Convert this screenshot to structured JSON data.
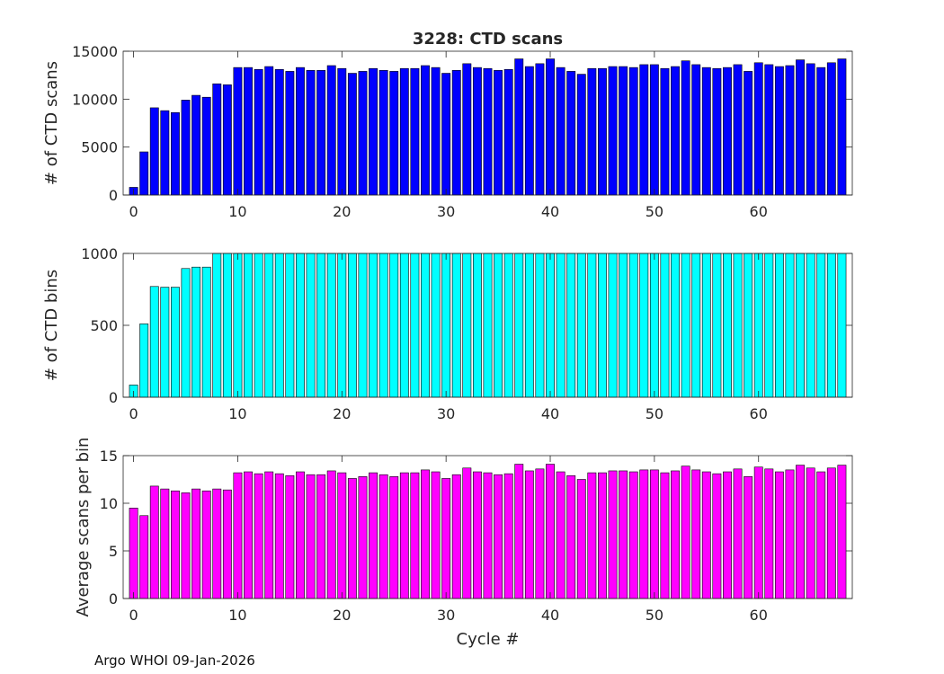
{
  "figure": {
    "footer": "Argo WHOI 09-Jan-2026"
  },
  "chart_data": [
    {
      "type": "bar",
      "title": "3228: CTD scans",
      "xlabel": "",
      "ylabel": "# of CTD scans",
      "color": "#0000ff",
      "xlim": [
        -1,
        69
      ],
      "ylim": [
        0,
        15000
      ],
      "yticks": [
        0,
        5000,
        10000,
        15000
      ],
      "xticks": [
        0,
        10,
        20,
        30,
        40,
        50,
        60
      ],
      "grid": false,
      "x": [
        0,
        1,
        2,
        3,
        4,
        5,
        6,
        7,
        8,
        9,
        10,
        11,
        12,
        13,
        14,
        15,
        16,
        17,
        18,
        19,
        20,
        21,
        22,
        23,
        24,
        25,
        26,
        27,
        28,
        29,
        30,
        31,
        32,
        33,
        34,
        35,
        36,
        37,
        38,
        39,
        40,
        41,
        42,
        43,
        44,
        45,
        46,
        47,
        48,
        49,
        50,
        51,
        52,
        53,
        54,
        55,
        56,
        57,
        58,
        59,
        60,
        61,
        62,
        63,
        64,
        65,
        66,
        67,
        68
      ],
      "values": [
        800,
        4500,
        9100,
        8800,
        8600,
        9900,
        10400,
        10200,
        11600,
        11500,
        13300,
        13300,
        13100,
        13400,
        13100,
        12900,
        13300,
        13000,
        13000,
        13500,
        13200,
        12700,
        12900,
        13200,
        13000,
        12900,
        13200,
        13200,
        13500,
        13300,
        12700,
        13000,
        13700,
        13300,
        13200,
        13000,
        13100,
        14200,
        13400,
        13700,
        14200,
        13300,
        12900,
        12600,
        13200,
        13200,
        13400,
        13400,
        13300,
        13600,
        13600,
        13200,
        13400,
        14000,
        13600,
        13300,
        13200,
        13300,
        13600,
        12900,
        13800,
        13600,
        13400,
        13500,
        14100,
        13700,
        13300,
        13800,
        14200
      ]
    },
    {
      "type": "bar",
      "title": "",
      "xlabel": "",
      "ylabel": "# of CTD bins",
      "color": "#00ffff",
      "xlim": [
        -1,
        69
      ],
      "ylim": [
        0,
        1000
      ],
      "yticks": [
        0,
        500,
        1000
      ],
      "xticks": [
        0,
        10,
        20,
        30,
        40,
        50,
        60
      ],
      "grid": false,
      "x": [
        0,
        1,
        2,
        3,
        4,
        5,
        6,
        7,
        8,
        9,
        10,
        11,
        12,
        13,
        14,
        15,
        16,
        17,
        18,
        19,
        20,
        21,
        22,
        23,
        24,
        25,
        26,
        27,
        28,
        29,
        30,
        31,
        32,
        33,
        34,
        35,
        36,
        37,
        38,
        39,
        40,
        41,
        42,
        43,
        44,
        45,
        46,
        47,
        48,
        49,
        50,
        51,
        52,
        53,
        54,
        55,
        56,
        57,
        58,
        59,
        60,
        61,
        62,
        63,
        64,
        65,
        66,
        67,
        68
      ],
      "values": [
        85,
        510,
        770,
        765,
        765,
        895,
        905,
        905,
        1000,
        1000,
        1000,
        1000,
        1000,
        1000,
        1000,
        1000,
        1000,
        1000,
        1000,
        1000,
        1000,
        1000,
        1000,
        1000,
        1000,
        1000,
        1000,
        1000,
        1000,
        1000,
        1000,
        1000,
        1000,
        1000,
        1000,
        1000,
        1000,
        1000,
        1000,
        1000,
        1000,
        1000,
        1000,
        1000,
        1000,
        1000,
        1000,
        1000,
        1000,
        1000,
        1000,
        1000,
        1000,
        1000,
        1000,
        1000,
        1000,
        1000,
        1000,
        1000,
        1000,
        1000,
        1000,
        1000,
        1000,
        1000,
        1000,
        1000,
        1000
      ]
    },
    {
      "type": "bar",
      "title": "",
      "xlabel": "Cycle #",
      "ylabel": "Average scans per bin",
      "color": "#ff00ff",
      "xlim": [
        -1,
        69
      ],
      "ylim": [
        0,
        15
      ],
      "yticks": [
        0,
        5,
        10,
        15
      ],
      "xticks": [
        0,
        10,
        20,
        30,
        40,
        50,
        60
      ],
      "grid": false,
      "x": [
        0,
        1,
        2,
        3,
        4,
        5,
        6,
        7,
        8,
        9,
        10,
        11,
        12,
        13,
        14,
        15,
        16,
        17,
        18,
        19,
        20,
        21,
        22,
        23,
        24,
        25,
        26,
        27,
        28,
        29,
        30,
        31,
        32,
        33,
        34,
        35,
        36,
        37,
        38,
        39,
        40,
        41,
        42,
        43,
        44,
        45,
        46,
        47,
        48,
        49,
        50,
        51,
        52,
        53,
        54,
        55,
        56,
        57,
        58,
        59,
        60,
        61,
        62,
        63,
        64,
        65,
        66,
        67,
        68
      ],
      "values": [
        9.5,
        8.7,
        11.8,
        11.5,
        11.3,
        11.1,
        11.5,
        11.3,
        11.5,
        11.4,
        13.2,
        13.3,
        13.1,
        13.3,
        13.1,
        12.9,
        13.3,
        13.0,
        13.0,
        13.4,
        13.2,
        12.6,
        12.8,
        13.2,
        13.0,
        12.8,
        13.2,
        13.2,
        13.5,
        13.3,
        12.6,
        13.0,
        13.7,
        13.3,
        13.2,
        13.0,
        13.1,
        14.1,
        13.4,
        13.6,
        14.1,
        13.3,
        12.9,
        12.5,
        13.2,
        13.2,
        13.4,
        13.4,
        13.3,
        13.5,
        13.5,
        13.2,
        13.4,
        13.9,
        13.5,
        13.3,
        13.1,
        13.3,
        13.6,
        12.8,
        13.8,
        13.6,
        13.3,
        13.5,
        14.0,
        13.7,
        13.3,
        13.7,
        14.0
      ]
    }
  ]
}
